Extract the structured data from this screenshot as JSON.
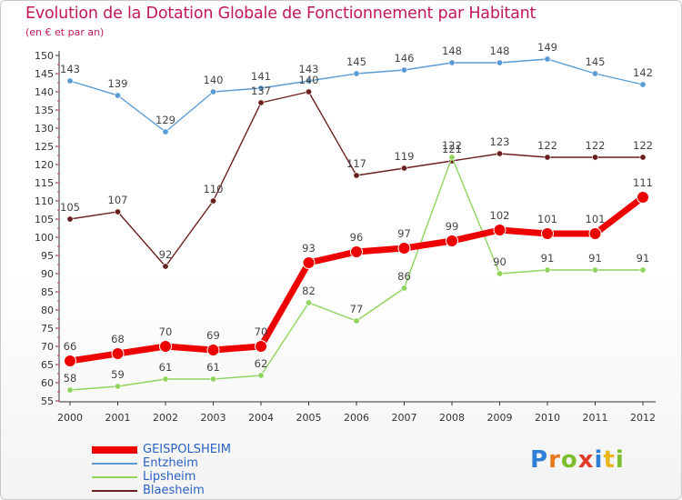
{
  "title": "Evolution de la Dotation Globale de Fonctionnement par Habitant",
  "subtitle": "(en € et par an)",
  "logo": {
    "text": "Proxiti",
    "letters": [
      {
        "ch": "P",
        "color": "#2f7fd6"
      },
      {
        "ch": "r",
        "color": "#e8791c"
      },
      {
        "ch": "o",
        "color": "#7cbf2c"
      },
      {
        "ch": "x",
        "color": "#e23c2a"
      },
      {
        "ch": "i",
        "color": "#2f7fd6"
      },
      {
        "ch": "t",
        "color": "#e8b51c"
      },
      {
        "ch": "i",
        "color": "#7cbf2c"
      }
    ]
  },
  "chart_data": {
    "type": "line",
    "x": [
      2000,
      2001,
      2002,
      2003,
      2004,
      2005,
      2006,
      2007,
      2008,
      2009,
      2010,
      2011,
      2012
    ],
    "ylim": [
      55,
      150
    ],
    "yticks": [
      55,
      60,
      65,
      70,
      75,
      80,
      85,
      90,
      95,
      100,
      105,
      110,
      115,
      120,
      125,
      130,
      135,
      140,
      145,
      150
    ],
    "grid": false,
    "legend_position": "bottom-left",
    "series": [
      {
        "name": "Entzheim",
        "color": "#5b9bd5",
        "values": [
          143,
          139,
          129,
          140,
          141,
          143,
          145,
          146,
          148,
          148,
          149,
          145,
          142
        ]
      },
      {
        "name": "Blaesheim",
        "color": "#6b1e1e",
        "values": [
          105,
          107,
          92,
          110,
          137,
          140,
          117,
          119,
          121,
          123,
          122,
          122,
          122
        ]
      },
      {
        "name": "Lipsheim",
        "color": "#8fd45c",
        "values": [
          58,
          59,
          61,
          61,
          62,
          82,
          77,
          86,
          122,
          90,
          91,
          91,
          91
        ]
      },
      {
        "name": "GEISPOLSHEIM",
        "color": "#ee0000",
        "values": [
          66,
          68,
          70,
          69,
          70,
          93,
          96,
          97,
          99,
          102,
          101,
          101,
          111
        ]
      }
    ],
    "legend_order": [
      "GEISPOLSHEIM",
      "Entzheim",
      "Lipsheim",
      "Blaesheim"
    ]
  }
}
